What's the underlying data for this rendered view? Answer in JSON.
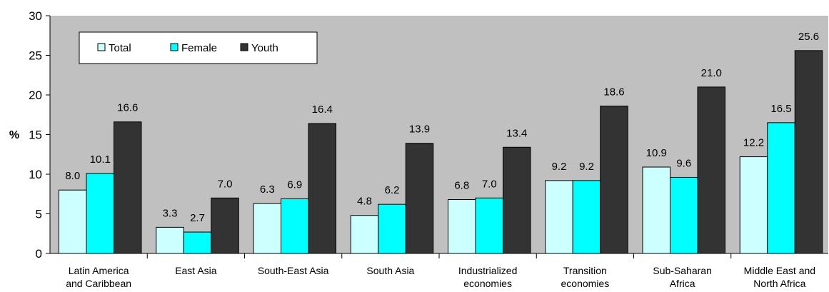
{
  "chart_data": {
    "type": "bar",
    "categories": [
      [
        "Latin America",
        "and Caribbean"
      ],
      [
        "East Asia"
      ],
      [
        "South-East Asia"
      ],
      [
        "South Asia"
      ],
      [
        "Industrialized",
        "economies"
      ],
      [
        "Transition",
        "economies"
      ],
      [
        "Sub-Saharan",
        "Africa"
      ],
      [
        "Middle East and",
        "North Africa"
      ]
    ],
    "series": [
      {
        "name": "Total",
        "color": "#ccffff",
        "values": [
          8.0,
          3.3,
          6.3,
          4.8,
          6.8,
          9.2,
          10.9,
          12.2
        ]
      },
      {
        "name": "Female",
        "color": "#00ffff",
        "values": [
          10.1,
          2.7,
          6.9,
          6.2,
          7.0,
          9.2,
          9.6,
          16.5
        ]
      },
      {
        "name": "Youth",
        "color": "#333333",
        "values": [
          16.6,
          7.0,
          16.4,
          13.9,
          13.4,
          18.6,
          21.0,
          25.6
        ]
      }
    ],
    "ylabel": "%",
    "ylim": [
      0,
      30
    ],
    "yticks": [
      0,
      5,
      10,
      15,
      20,
      25,
      30
    ],
    "legend_position": "top-left",
    "plot_background": "#c0c0c0",
    "grid": false
  }
}
